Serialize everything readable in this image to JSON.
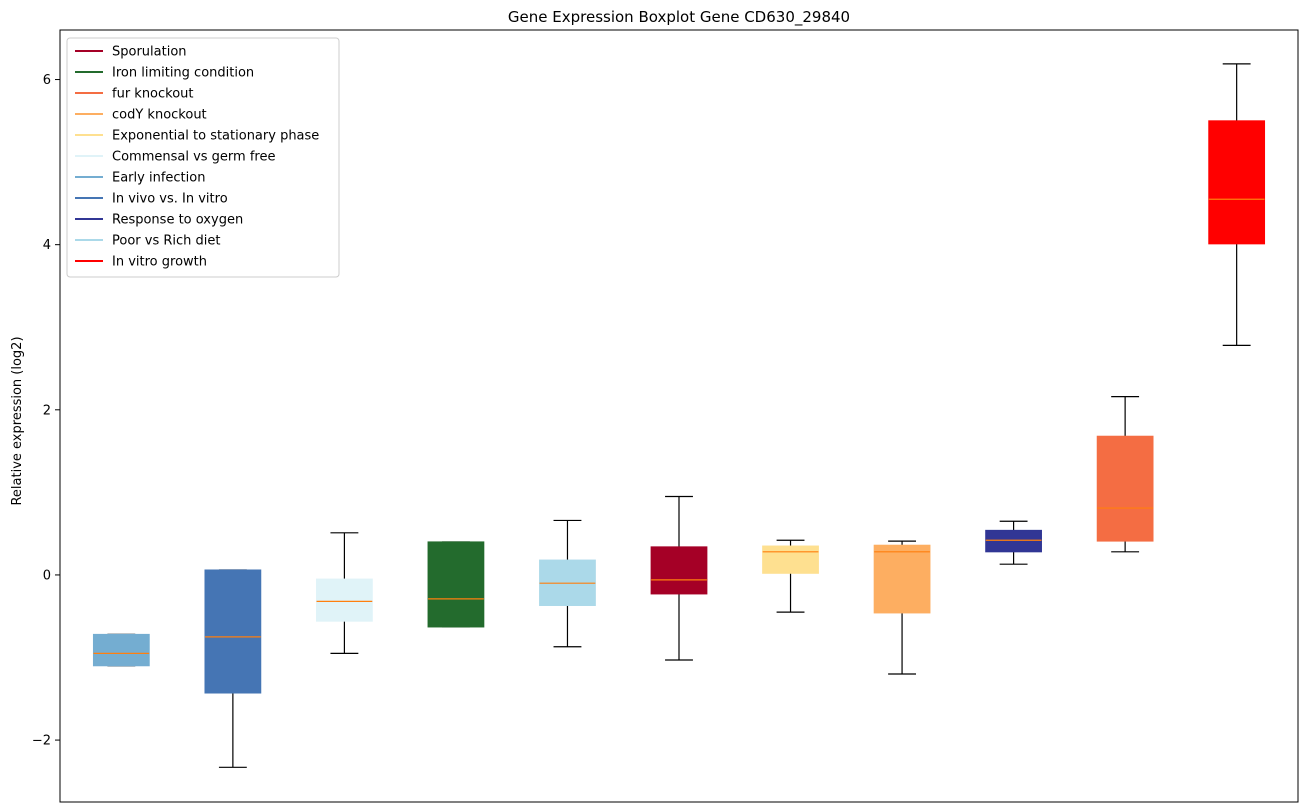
{
  "chart_data": {
    "type": "boxplot",
    "title": "Gene Expression Boxplot Gene CD630_29840",
    "xlabel": "",
    "ylabel": "Relative expression (log2)",
    "ylim": [
      -2.75,
      6.6
    ],
    "yticks": [
      -2,
      0,
      2,
      4,
      6
    ],
    "ytick_labels": [
      "−2",
      "0",
      "2",
      "4",
      "6"
    ],
    "grid": false,
    "legend_position": "top-left",
    "legend": [
      {
        "name": "Sporulation",
        "color": "#a50026"
      },
      {
        "name": "Iron limiting condition",
        "color": "#236b2d"
      },
      {
        "name": "fur knockout",
        "color": "#f46d43"
      },
      {
        "name": "codY knockout",
        "color": "#fdae61"
      },
      {
        "name": "Exponential to stationary phase",
        "color": "#fee090"
      },
      {
        "name": "Commensal vs germ free",
        "color": "#e0f3f8"
      },
      {
        "name": "Early infection",
        "color": "#74add1"
      },
      {
        "name": "In vivo vs. In vitro",
        "color": "#4575b4"
      },
      {
        "name": "Response to oxygen",
        "color": "#313695"
      },
      {
        "name": "Poor vs Rich diet",
        "color": "#abd9e9"
      },
      {
        "name": "In vitro growth",
        "color": "#ff0000"
      }
    ],
    "median_color": "#ff7f0e",
    "boxes": [
      {
        "series": "Early infection",
        "color": "#74add1",
        "whislo": -1.1,
        "q1": -1.1,
        "med": -0.95,
        "q3": -0.72,
        "whishi": -0.72
      },
      {
        "series": "In vivo vs. In vitro",
        "color": "#4575b4",
        "whislo": -2.33,
        "q1": -1.43,
        "med": -0.75,
        "q3": 0.06,
        "whishi": 0.06
      },
      {
        "series": "Commensal vs germ free",
        "color": "#e0f3f8",
        "whislo": -0.95,
        "q1": -0.56,
        "med": -0.32,
        "q3": -0.05,
        "whishi": 0.51
      },
      {
        "series": "Iron limiting condition",
        "color": "#236b2d",
        "whislo": -0.63,
        "q1": -0.63,
        "med": -0.29,
        "q3": 0.4,
        "whishi": 0.4
      },
      {
        "series": "Poor vs Rich diet",
        "color": "#abd9e9",
        "whislo": -0.87,
        "q1": -0.37,
        "med": -0.1,
        "q3": 0.18,
        "whishi": 0.66
      },
      {
        "series": "Sporulation",
        "color": "#a50026",
        "whislo": -1.03,
        "q1": -0.23,
        "med": -0.06,
        "q3": 0.34,
        "whishi": 0.95
      },
      {
        "series": "Exponential to stationary phase",
        "color": "#fee090",
        "whislo": -0.45,
        "q1": 0.02,
        "med": 0.28,
        "q3": 0.35,
        "whishi": 0.42
      },
      {
        "series": "codY knockout",
        "color": "#fdae61",
        "whislo": -1.2,
        "q1": -0.46,
        "med": 0.28,
        "q3": 0.36,
        "whishi": 0.41
      },
      {
        "series": "Response to oxygen",
        "color": "#313695",
        "whislo": 0.13,
        "q1": 0.28,
        "med": 0.42,
        "q3": 0.54,
        "whishi": 0.65
      },
      {
        "series": "fur knockout",
        "color": "#f46d43",
        "whislo": 0.28,
        "q1": 0.41,
        "med": 0.81,
        "q3": 1.68,
        "whishi": 2.16
      },
      {
        "series": "In vitro growth",
        "color": "#ff0000",
        "whislo": 2.78,
        "q1": 4.01,
        "med": 4.55,
        "q3": 5.5,
        "whishi": 6.19
      }
    ]
  }
}
